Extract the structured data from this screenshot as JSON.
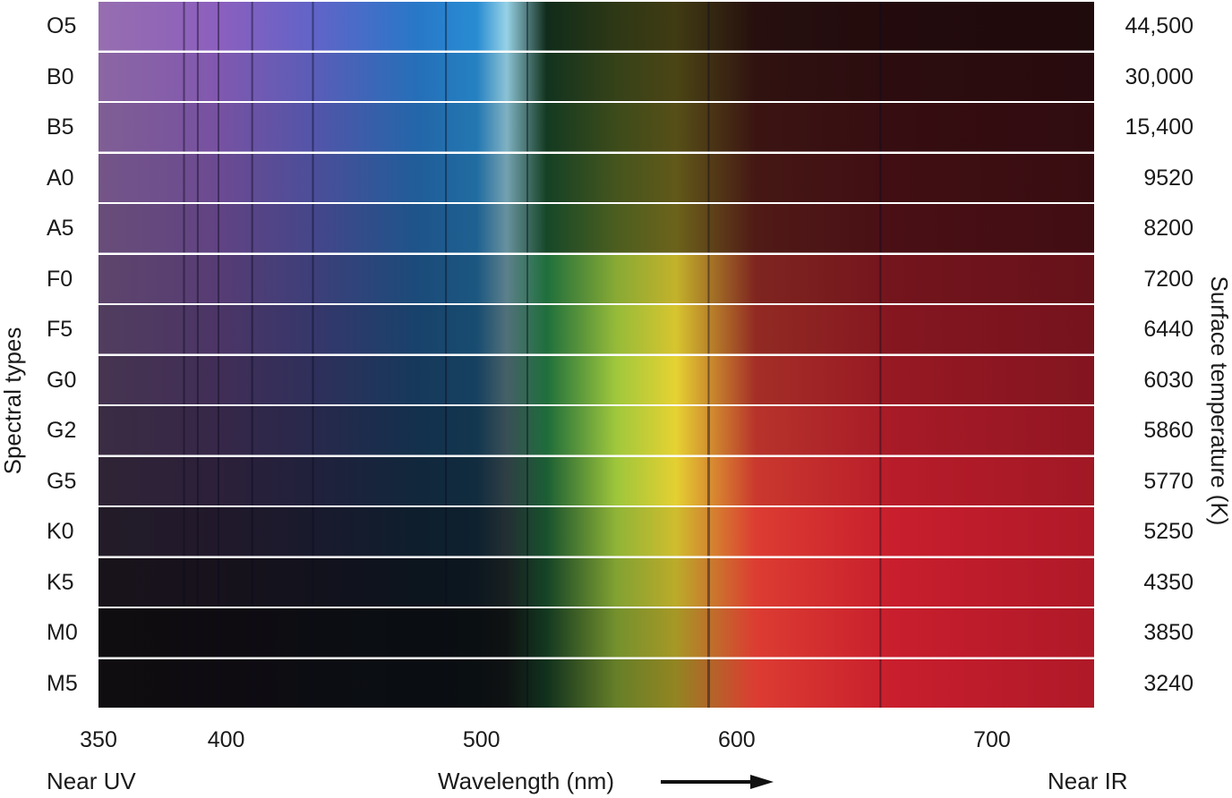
{
  "axis_left_title": "Spectral types",
  "axis_right_title": "Surface temperature (K)",
  "x_axis": {
    "title": "Wavelength  (nm)",
    "left_end_label": "Near UV",
    "right_end_label": "Near IR",
    "range_nm": [
      350,
      740
    ],
    "ticks": [
      {
        "value": 350,
        "label": "350"
      },
      {
        "value": 400,
        "label": "400"
      },
      {
        "value": 500,
        "label": "500"
      },
      {
        "value": 600,
        "label": "600"
      },
      {
        "value": 700,
        "label": "700"
      }
    ]
  },
  "spectra": [
    {
      "type": "O5",
      "temperature": "44,500"
    },
    {
      "type": "B0",
      "temperature": "30,000"
    },
    {
      "type": "B5",
      "temperature": "15,400"
    },
    {
      "type": "A0",
      "temperature": "9520"
    },
    {
      "type": "A5",
      "temperature": "8200"
    },
    {
      "type": "F0",
      "temperature": "7200"
    },
    {
      "type": "F5",
      "temperature": "6440"
    },
    {
      "type": "G0",
      "temperature": "6030"
    },
    {
      "type": "G2",
      "temperature": "5860"
    },
    {
      "type": "G5",
      "temperature": "5770"
    },
    {
      "type": "K0",
      "temperature": "5250"
    },
    {
      "type": "K5",
      "temperature": "4350"
    },
    {
      "type": "M0",
      "temperature": "3850"
    },
    {
      "type": "M5",
      "temperature": "3240"
    }
  ],
  "absorption_lines_nm": [
    383.5,
    388.9,
    397.0,
    410.2,
    434.0,
    486.1,
    518.0,
    589.0,
    656.3
  ]
}
